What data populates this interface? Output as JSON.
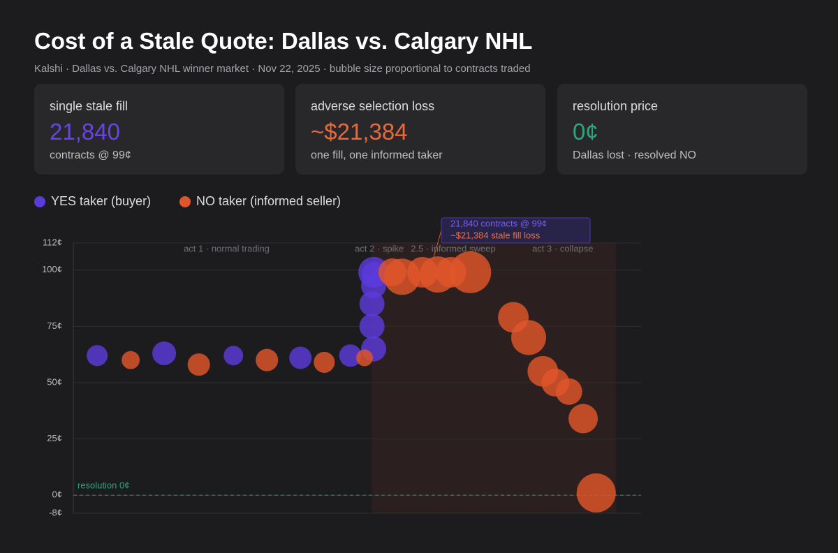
{
  "header": {
    "title": "Cost of a Stale Quote: Dallas vs. Calgary NHL",
    "subtitle": "Kalshi · Dallas vs. Calgary NHL winner market · Nov 22, 2025 · bubble size proportional to contracts traded"
  },
  "cards": [
    {
      "label": "single stale fill",
      "value": "21,840",
      "note": "contracts @ 99¢"
    },
    {
      "label": "adverse selection loss",
      "value": "~$21,384",
      "note": "one fill, one informed taker"
    },
    {
      "label": "resolution price",
      "value": "0¢",
      "note": "Dallas lost · resolved NO"
    }
  ],
  "chart_data": {
    "type": "bubble",
    "series": [
      {
        "name": "YES taker (buyer)",
        "color": "#5b3bdc",
        "x": [
          4.2,
          16.0,
          28.2,
          40.0,
          48.8,
          52.9,
          52.6,
          52.6,
          52.9,
          53.0,
          52.9
        ],
        "values": [
          62,
          63,
          62,
          61,
          62,
          65,
          75,
          85,
          93,
          98,
          99
        ],
        "sizes": [
          10200,
          13000,
          8800,
          11600,
          11600,
          14600,
          14600,
          14600,
          14600,
          14600,
          21840
        ]
      },
      {
        "name": "NO taker (informed seller)",
        "color": "#e0562a",
        "x": [
          10.1,
          22.1,
          34.1,
          44.2,
          51.3,
          56.2,
          57.9,
          61.5,
          64.2,
          66.5,
          69.9,
          77.5,
          80.2,
          82.7,
          84.9,
          87.3,
          89.8,
          92.1
        ],
        "values": [
          60,
          58,
          60,
          59,
          61,
          99,
          97,
          99,
          98,
          99,
          99,
          79,
          70,
          55,
          50,
          46,
          34,
          1
        ],
        "sizes": [
          7600,
          11600,
          11600,
          10200,
          6500,
          18000,
          30500,
          21800,
          30500,
          21800,
          40600,
          21800,
          28200,
          21800,
          18000,
          16300,
          19900,
          35400
        ]
      }
    ],
    "xlim": [
      0,
      100
    ],
    "ylim": [
      -8,
      112
    ],
    "yticks": [
      {
        "value": -8,
        "label": "-8¢"
      },
      {
        "value": 0,
        "label": "0¢"
      },
      {
        "value": 25,
        "label": "25¢"
      },
      {
        "value": 50,
        "label": "50¢"
      },
      {
        "value": 75,
        "label": "75¢"
      },
      {
        "value": 100,
        "label": "100¢"
      },
      {
        "value": 112,
        "label": "112¢"
      }
    ],
    "grid": true,
    "regions": [
      {
        "label": "act 1 · normal trading",
        "x": 27
      },
      {
        "label": "act 2 · spike",
        "x": 53.9
      },
      {
        "label": "2.5 · informed sweep",
        "x": 66.9
      },
      {
        "label": "act 3 · collapse",
        "x": 86.2
      }
    ],
    "shade": [
      52.6,
      95.6
    ],
    "reference": {
      "label": "resolution 0¢",
      "value": 0
    },
    "annotation": {
      "line1": "21,840 contracts @ 99¢",
      "line2": "~$21,384 stale fill loss"
    }
  }
}
